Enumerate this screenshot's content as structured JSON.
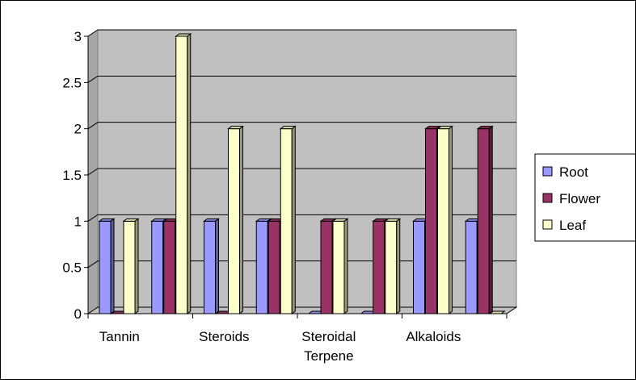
{
  "chart_data": {
    "type": "bar",
    "style": "3d-clustered-column",
    "categories": [
      "Tannin",
      "",
      "Steroids",
      "",
      "Steroidal Terpene",
      "",
      "Alkaloids",
      ""
    ],
    "category_labels_shown": [
      "Tannin",
      "Steroids",
      "Steroidal\nTerpene",
      "Alkaloids"
    ],
    "series": [
      {
        "name": "Root",
        "values": [
          1,
          1,
          1,
          1,
          0,
          0,
          1,
          1
        ],
        "color": "#9999FF"
      },
      {
        "name": "Flower",
        "values": [
          0,
          1,
          0,
          1,
          1,
          1,
          2,
          2
        ],
        "color": "#993366"
      },
      {
        "name": "Leaf",
        "values": [
          1,
          3,
          2,
          2,
          1,
          1,
          2,
          0
        ],
        "color": "#FFFFCC"
      }
    ],
    "y_ticks": [
      "0",
      "0.5",
      "1",
      "1.5",
      "2",
      "2.5",
      "3"
    ],
    "ylim": [
      0,
      3
    ],
    "ytick_step": 0.5,
    "title": "",
    "xlabel": "",
    "ylabel": "",
    "grid": true,
    "legend_position": "right",
    "plot_background": "#C0C0C0"
  }
}
